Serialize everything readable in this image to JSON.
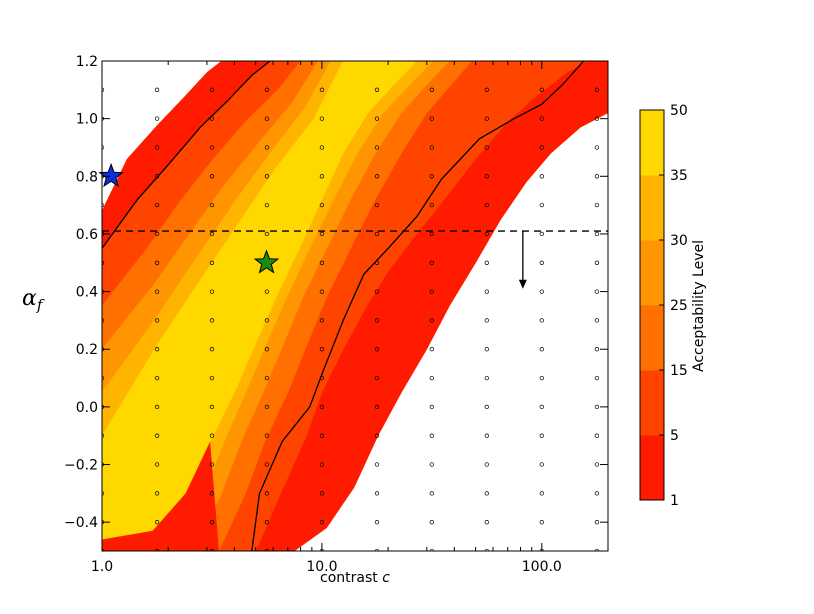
{
  "chart_data": {
    "type": "contour",
    "xlabel": "contrast",
    "xlabel_symbol": "c",
    "ylabel": "α",
    "ylabel_sub": "f",
    "xscale": "log",
    "xlim": [
      1.0,
      200.0
    ],
    "ylim": [
      -0.5,
      1.2
    ],
    "x_ticks": [
      {
        "value": 1.0,
        "label": "1.0"
      },
      {
        "value": 10.0,
        "label": "10.0"
      },
      {
        "value": 100.0,
        "label": "100.0"
      }
    ],
    "y_ticks": [
      {
        "value": 1.2,
        "label": "1.2"
      },
      {
        "value": 1.0,
        "label": "1.0"
      },
      {
        "value": 0.8,
        "label": "0.8"
      },
      {
        "value": 0.6,
        "label": "0.6"
      },
      {
        "value": 0.4,
        "label": "0.4"
      },
      {
        "value": 0.2,
        "label": "0.2"
      },
      {
        "value": 0.0,
        "label": "0.0"
      },
      {
        "value": -0.2,
        "label": "−0.2"
      },
      {
        "value": -0.4,
        "label": "−0.4"
      }
    ],
    "grid_x": [
      1.0,
      1.78,
      3.16,
      5.62,
      10.0,
      17.8,
      31.6,
      56.2,
      100.0,
      178.0
    ],
    "grid_y": [
      1.1,
      1.0,
      0.9,
      0.8,
      0.7,
      0.6,
      0.5,
      0.4,
      0.3,
      0.2,
      0.1,
      0.0,
      -0.1,
      -0.2,
      -0.3,
      -0.4,
      -0.5
    ],
    "contour_bands": [
      {
        "level_min": 1,
        "level_max": 5,
        "color": "#ff1b00",
        "upper": [
          [
            1.0,
            0.68
          ],
          [
            1.3,
            0.86
          ],
          [
            1.8,
            0.98
          ],
          [
            2.4,
            1.08
          ],
          [
            3.0,
            1.16
          ],
          [
            3.5,
            1.2
          ]
        ],
        "lower": [
          [
            7.5,
            -0.5
          ],
          [
            10.5,
            -0.42
          ],
          [
            14.0,
            -0.28
          ],
          [
            18.0,
            -0.1
          ],
          [
            23.0,
            0.05
          ],
          [
            30.0,
            0.2
          ],
          [
            38.0,
            0.35
          ],
          [
            50.0,
            0.5
          ],
          [
            65.0,
            0.65
          ],
          [
            85.0,
            0.78
          ],
          [
            110.0,
            0.88
          ],
          [
            150.0,
            0.97
          ],
          [
            200.0,
            1.02
          ]
        ]
      },
      {
        "level_min": 5,
        "level_max": 15,
        "color": "#ff4400",
        "upper": [
          [
            1.0,
            0.55
          ],
          [
            1.45,
            0.72
          ],
          [
            2.0,
            0.84
          ],
          [
            2.8,
            0.97
          ],
          [
            3.7,
            1.06
          ],
          [
            4.8,
            1.15
          ],
          [
            5.8,
            1.2
          ]
        ],
        "lower": [
          [
            5.0,
            -0.5
          ],
          [
            6.5,
            -0.3
          ],
          [
            8.5,
            -0.1
          ],
          [
            10.0,
            0.05
          ],
          [
            12.5,
            0.2
          ],
          [
            16.0,
            0.35
          ],
          [
            20.0,
            0.47
          ],
          [
            27.0,
            0.6
          ],
          [
            36.0,
            0.72
          ],
          [
            50.0,
            0.86
          ],
          [
            70.0,
            0.99
          ],
          [
            95.0,
            1.08
          ],
          [
            130.0,
            1.16
          ],
          [
            160.0,
            1.2
          ],
          [
            200.0,
            1.2
          ]
        ]
      },
      {
        "level_min": 15,
        "level_max": 25,
        "color": "#ff7000",
        "upper": [
          [
            1.0,
            0.35
          ],
          [
            1.6,
            0.55
          ],
          [
            2.3,
            0.72
          ],
          [
            3.2,
            0.86
          ],
          [
            4.5,
            0.99
          ],
          [
            6.3,
            1.1
          ],
          [
            8.0,
            1.2
          ]
        ],
        "lower": [
          [
            3.4,
            -0.5
          ],
          [
            4.5,
            -0.3
          ],
          [
            5.5,
            -0.12
          ],
          [
            7.0,
            0.05
          ],
          [
            8.6,
            0.22
          ],
          [
            10.5,
            0.38
          ],
          [
            13.5,
            0.55
          ],
          [
            17.5,
            0.72
          ],
          [
            23.0,
            0.88
          ],
          [
            30.0,
            1.02
          ],
          [
            40.0,
            1.13
          ],
          [
            48.0,
            1.2
          ]
        ]
      },
      {
        "level_min": 25,
        "level_max": 30,
        "color": "#ff9500",
        "upper": [
          [
            1.0,
            0.2
          ],
          [
            1.7,
            0.42
          ],
          [
            2.5,
            0.6
          ],
          [
            3.6,
            0.77
          ],
          [
            5.2,
            0.92
          ],
          [
            7.4,
            1.06
          ],
          [
            9.6,
            1.2
          ]
        ],
        "lower": [
          [
            2.6,
            -0.5
          ],
          [
            3.5,
            -0.3
          ],
          [
            4.3,
            -0.12
          ],
          [
            5.4,
            0.05
          ],
          [
            6.7,
            0.22
          ],
          [
            8.2,
            0.38
          ],
          [
            10.5,
            0.55
          ],
          [
            13.5,
            0.72
          ],
          [
            17.5,
            0.88
          ],
          [
            23.0,
            1.02
          ],
          [
            31.0,
            1.13
          ],
          [
            38.0,
            1.2
          ]
        ]
      },
      {
        "level_min": 30,
        "level_max": 35,
        "color": "#ffb400",
        "upper": [
          [
            1.0,
            0.05
          ],
          [
            1.8,
            0.32
          ],
          [
            2.7,
            0.52
          ],
          [
            4.0,
            0.71
          ],
          [
            5.8,
            0.88
          ],
          [
            8.4,
            1.04
          ],
          [
            11.0,
            1.2
          ]
        ],
        "lower": [
          [
            2.0,
            -0.5
          ],
          [
            2.9,
            -0.3
          ],
          [
            3.6,
            -0.12
          ],
          [
            4.5,
            0.05
          ],
          [
            5.6,
            0.22
          ],
          [
            6.9,
            0.38
          ],
          [
            8.8,
            0.55
          ],
          [
            11.3,
            0.72
          ],
          [
            14.5,
            0.88
          ],
          [
            19.0,
            1.02
          ],
          [
            26.0,
            1.13
          ],
          [
            32.0,
            1.2
          ]
        ]
      },
      {
        "level_min": 35,
        "level_max": 50,
        "color": "#ffd800",
        "upper": [
          [
            1.0,
            -0.1
          ],
          [
            1.8,
            0.22
          ],
          [
            2.8,
            0.44
          ],
          [
            4.2,
            0.64
          ],
          [
            6.2,
            0.83
          ],
          [
            9.2,
            1.0
          ],
          [
            12.5,
            1.2
          ]
        ],
        "lower": [
          [
            1.0,
            -0.46
          ],
          [
            1.7,
            -0.43
          ],
          [
            2.4,
            -0.3
          ],
          [
            3.1,
            -0.12
          ],
          [
            4.0,
            0.05
          ],
          [
            5.0,
            0.22
          ],
          [
            6.2,
            0.38
          ],
          [
            7.9,
            0.55
          ],
          [
            10.0,
            0.72
          ],
          [
            12.5,
            0.88
          ],
          [
            16.2,
            1.02
          ],
          [
            22.0,
            1.13
          ],
          [
            27.0,
            1.2
          ]
        ]
      }
    ],
    "corner_band": {
      "color": "#ff1b00",
      "points": [
        [
          1.0,
          -0.5
        ],
        [
          1.0,
          -0.46
        ],
        [
          1.7,
          -0.43
        ],
        [
          2.4,
          -0.3
        ],
        [
          3.1,
          -0.12
        ],
        [
          3.4,
          -0.5
        ]
      ]
    },
    "contour_lines": [
      {
        "name": "upper",
        "points": [
          [
            1.0,
            0.55
          ],
          [
            1.45,
            0.72
          ],
          [
            2.0,
            0.84
          ],
          [
            2.8,
            0.97
          ],
          [
            3.7,
            1.06
          ],
          [
            4.8,
            1.15
          ],
          [
            5.8,
            1.2
          ]
        ]
      },
      {
        "name": "lower",
        "points": [
          [
            4.8,
            -0.5
          ],
          [
            5.2,
            -0.3
          ],
          [
            6.6,
            -0.12
          ],
          [
            8.8,
            0.0
          ],
          [
            10.2,
            0.13
          ],
          [
            12.5,
            0.3
          ],
          [
            15.5,
            0.46
          ],
          [
            20.0,
            0.55
          ],
          [
            27.0,
            0.66
          ],
          [
            35.0,
            0.79
          ],
          [
            52.0,
            0.93
          ],
          [
            75.0,
            1.0
          ],
          [
            100.0,
            1.05
          ],
          [
            125.0,
            1.12
          ],
          [
            155.0,
            1.2
          ]
        ]
      }
    ],
    "dashed_line": {
      "y": 0.61,
      "x_range": [
        1.0,
        200.0
      ]
    },
    "arrow": {
      "x": 82.0,
      "y_from": 0.61,
      "y_to": 0.41
    },
    "markers": [
      {
        "shape": "star",
        "color": "#0b2fdd",
        "x": 1.1,
        "y": 0.8
      },
      {
        "shape": "star",
        "color": "#1e8a10",
        "x": 5.6,
        "y": 0.5
      }
    ],
    "colorbar": {
      "label": "Acceptability Level",
      "ticks": [
        "1",
        "5",
        "15",
        "25",
        "30",
        "35",
        "50"
      ],
      "tick_values": [
        1,
        5,
        15,
        25,
        30,
        35,
        50
      ],
      "colors": [
        "#ff1b00",
        "#ff4400",
        "#ff7000",
        "#ff9500",
        "#ffb400",
        "#ffd800"
      ]
    }
  }
}
